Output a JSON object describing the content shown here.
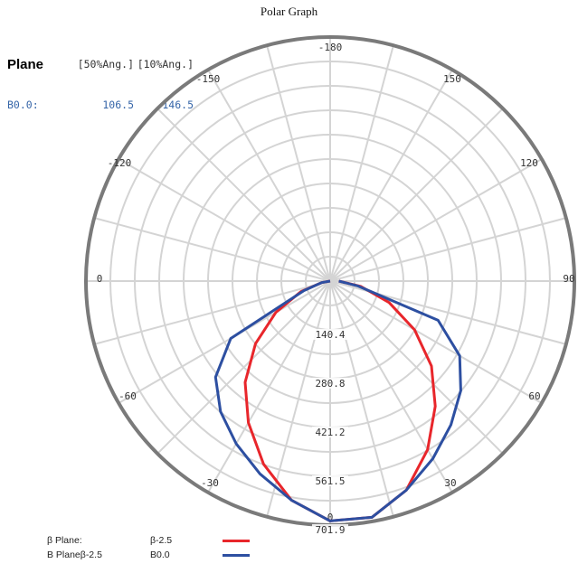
{
  "chart_data": {
    "type": "polar",
    "title": "Polar Graph",
    "radial_ticks": [
      "140.4",
      "280.8",
      "421.2",
      "561.5",
      "701.9"
    ],
    "r_max": 701.9,
    "angle_labels": [
      "-180",
      "150",
      "120",
      "90",
      "60",
      "30",
      "0",
      "-30",
      "-60",
      "0",
      "-120",
      "-150"
    ],
    "stats": {
      "header": {
        "plane": "Plane",
        "col1": "[50%Ang.]",
        "col2": "[10%Ang.]"
      },
      "row": {
        "name": "B0.0:",
        "val1": "106.5",
        "val2": "146.5"
      }
    },
    "series": [
      {
        "legend_label": "β Plane:",
        "name": "β-2.5",
        "color": "#e8262b",
        "theta": [
          -90,
          -80,
          -70,
          -60,
          -50,
          -40,
          -30,
          -20,
          -10,
          0,
          10,
          20,
          30,
          40,
          50,
          60,
          70,
          80,
          90
        ],
        "r": [
          0,
          25,
          90,
          180,
          280,
          380,
          470,
          560,
          640,
          690,
          690,
          640,
          560,
          470,
          380,
          280,
          180,
          90,
          25
        ]
      },
      {
        "legend_label": "B Planeβ-2.5",
        "name": "B0.0",
        "color": "#2d4fa1",
        "theta": [
          -90,
          -80,
          -70,
          -60,
          -50,
          -40,
          -30,
          -20,
          -10,
          0,
          10,
          20,
          30,
          40,
          50,
          60,
          70,
          80,
          90
        ],
        "r": [
          0,
          25,
          80,
          330,
          430,
          490,
          540,
          590,
          640,
          690,
          690,
          640,
          590,
          540,
          490,
          430,
          330,
          80,
          25
        ]
      }
    ]
  }
}
